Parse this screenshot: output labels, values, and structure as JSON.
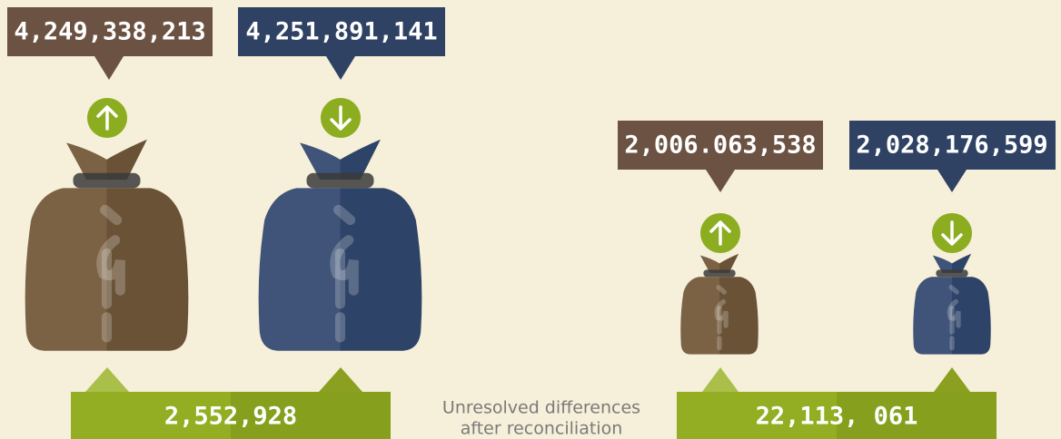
{
  "left": {
    "before": "4,249,338,213",
    "after": "4,251,891,141",
    "difference": "2,552,928"
  },
  "right": {
    "before": "2,006.063,538",
    "after": "2,028,176,599",
    "difference": "22,113, 061"
  },
  "caption": {
    "line1": "Unresolved differences",
    "line2": "after reconciliation"
  }
}
